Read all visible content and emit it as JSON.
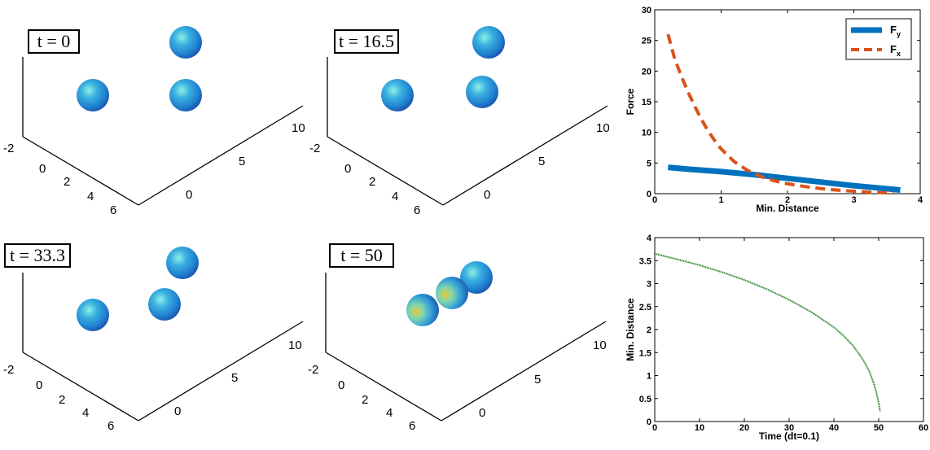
{
  "panels": [
    {
      "label": "t = 0"
    },
    {
      "label": "t = 16.5"
    },
    {
      "label": "t = 33.3"
    },
    {
      "label": "t = 50"
    }
  ],
  "axes3d": {
    "ticks_a": [
      "-2",
      "0",
      "2",
      "4",
      "6"
    ],
    "ticks_b": [
      "0",
      "5",
      "10"
    ]
  },
  "colors": {
    "sphere_main": "#2a8fd6",
    "sphere_light": "#7fe0e8",
    "sphere_warm": "#e6b82a",
    "series_fy": "#0072bd",
    "series_fx": "#d95319",
    "series_min": "#1a7f1a"
  },
  "chart_data": [
    {
      "type": "line",
      "xlabel": "Min. Distance",
      "ylabel": "Force",
      "xlim": [
        0,
        4
      ],
      "ylim": [
        0,
        30
      ],
      "xticks": [
        "0",
        "1",
        "2",
        "3",
        "4"
      ],
      "yticks": [
        "0",
        "5",
        "10",
        "15",
        "20",
        "25",
        "30"
      ],
      "legend": "top-right",
      "series": [
        {
          "name": "F",
          "subscript": "y",
          "style": "solid",
          "x": [
            0.2,
            0.5,
            1.0,
            1.5,
            2.0,
            2.5,
            3.0,
            3.4,
            3.7
          ],
          "values": [
            4.3,
            4.0,
            3.6,
            3.1,
            2.5,
            1.9,
            1.3,
            0.9,
            0.6
          ]
        },
        {
          "name": "F",
          "subscript": "x",
          "style": "dashed",
          "x": [
            0.2,
            0.3,
            0.4,
            0.5,
            0.6,
            0.7,
            0.8,
            0.9,
            1.0,
            1.2,
            1.4,
            1.6,
            1.8,
            2.0,
            2.3,
            2.6,
            3.0,
            3.3,
            3.6
          ],
          "values": [
            26.0,
            22.0,
            19.2,
            16.6,
            14.3,
            12.2,
            10.3,
            8.7,
            7.3,
            5.2,
            3.8,
            2.8,
            2.1,
            1.6,
            1.1,
            0.7,
            0.4,
            0.2,
            0.1
          ]
        }
      ]
    },
    {
      "type": "line",
      "xlabel": "Time (dt=0.1)",
      "ylabel": "Min. Distance",
      "xlim": [
        0,
        60
      ],
      "ylim": [
        0,
        4
      ],
      "xticks": [
        "0",
        "10",
        "20",
        "30",
        "40",
        "50",
        "60"
      ],
      "yticks": [
        "0",
        "0.5",
        "1",
        "1.5",
        "2",
        "2.5",
        "3",
        "3.5",
        "4"
      ],
      "series": [
        {
          "style": "dotted",
          "x": [
            0,
            5,
            10,
            15,
            20,
            25,
            30,
            35,
            40,
            42,
            44,
            46,
            47,
            48,
            49,
            49.5,
            50,
            50.3
          ],
          "values": [
            3.65,
            3.53,
            3.4,
            3.25,
            3.08,
            2.88,
            2.65,
            2.38,
            2.05,
            1.88,
            1.68,
            1.42,
            1.26,
            1.07,
            0.8,
            0.62,
            0.4,
            0.22
          ]
        }
      ]
    }
  ]
}
